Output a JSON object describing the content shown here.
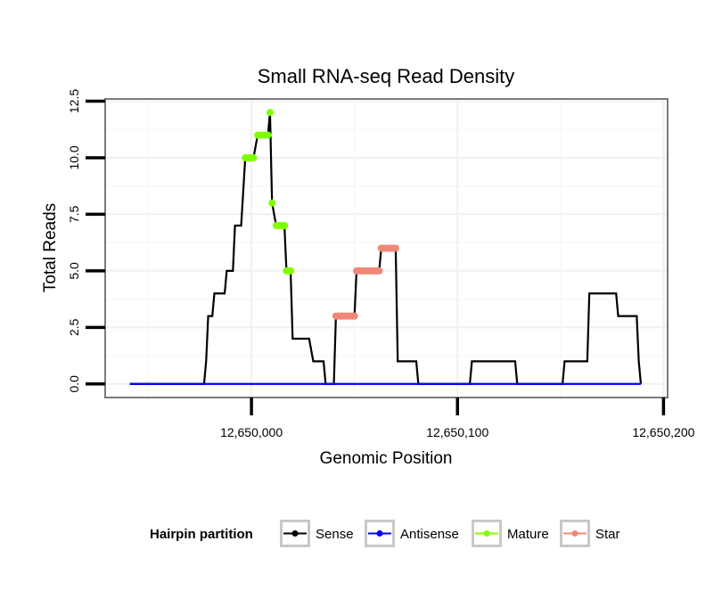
{
  "chart_data": {
    "type": "line",
    "title": "Small RNA-seq Read Density",
    "xlabel": "Genomic Position",
    "ylabel": "Total Reads",
    "xlim": [
      12649929,
      12650202
    ],
    "ylim": [
      -0.6,
      12.6
    ],
    "x_ticks": [
      12650000,
      12650100,
      12650200
    ],
    "x_tick_labels": [
      "12,650,000",
      "12,650,100",
      "12,650,200"
    ],
    "y_ticks": [
      0,
      2.5,
      5,
      7.5,
      10,
      12.5
    ],
    "y_tick_labels": [
      "0.0",
      "2.5",
      "5.0",
      "7.5",
      "10.0",
      "12.5"
    ],
    "grid": true,
    "legend": {
      "title": "Hairpin partition",
      "position": "bottom",
      "entries": [
        {
          "label": "Sense",
          "color": "#000000"
        },
        {
          "label": "Antisense",
          "color": "#0000ff"
        },
        {
          "label": "Mature",
          "color": "#7fff00"
        },
        {
          "label": "Star",
          "color": "#f08878"
        }
      ]
    },
    "series": [
      {
        "name": "Sense",
        "color": "#000000",
        "points": [
          [
            12649941,
            0
          ],
          [
            12649977,
            0
          ],
          [
            12649978,
            1
          ],
          [
            12649979,
            3
          ],
          [
            12649981,
            3
          ],
          [
            12649982,
            4
          ],
          [
            12649987,
            4
          ],
          [
            12649988,
            5
          ],
          [
            12649991,
            5
          ],
          [
            12649992,
            7
          ],
          [
            12649995,
            7
          ],
          [
            12649997,
            10
          ],
          [
            12650001,
            10
          ],
          [
            12650003,
            11
          ],
          [
            12650008,
            11
          ],
          [
            12650009,
            12
          ],
          [
            12650010,
            8
          ],
          [
            12650012,
            7
          ],
          [
            12650016,
            7
          ],
          [
            12650017,
            5
          ],
          [
            12650019,
            5
          ],
          [
            12650020,
            2
          ],
          [
            12650028,
            2
          ],
          [
            12650030,
            1
          ],
          [
            12650035,
            1
          ],
          [
            12650036,
            0
          ],
          [
            12650040,
            0
          ],
          [
            12650041,
            3
          ],
          [
            12650050,
            3
          ],
          [
            12650051,
            5
          ],
          [
            12650062,
            5
          ],
          [
            12650063,
            6
          ],
          [
            12650070,
            6
          ],
          [
            12650071,
            1
          ],
          [
            12650080,
            1
          ],
          [
            12650081,
            0
          ],
          [
            12650106,
            0
          ],
          [
            12650107,
            1
          ],
          [
            12650128,
            1
          ],
          [
            12650129,
            0
          ],
          [
            12650151,
            0
          ],
          [
            12650152,
            1
          ],
          [
            12650163,
            1
          ],
          [
            12650164,
            4
          ],
          [
            12650177,
            4
          ],
          [
            12650178,
            3
          ],
          [
            12650187,
            3
          ],
          [
            12650188,
            1
          ],
          [
            12650189,
            0
          ]
        ]
      },
      {
        "name": "Antisense",
        "color": "#0000ff",
        "points": [
          [
            12649941,
            0
          ],
          [
            12650189,
            0
          ]
        ]
      },
      {
        "name": "Mature",
        "color": "#7fff00",
        "points": [
          [
            12649997,
            10
          ],
          [
            12649998,
            10
          ],
          [
            12649999,
            10
          ],
          [
            12650000,
            10
          ],
          [
            12650001,
            10
          ],
          [
            12650003,
            11
          ],
          [
            12650004,
            11
          ],
          [
            12650005,
            11
          ],
          [
            12650006,
            11
          ],
          [
            12650007,
            11
          ],
          [
            12650008,
            11
          ],
          [
            12650009,
            12
          ],
          [
            12650010,
            8
          ],
          [
            12650012,
            7
          ],
          [
            12650013,
            7
          ],
          [
            12650014,
            7
          ],
          [
            12650015,
            7
          ],
          [
            12650016,
            7
          ],
          [
            12650017,
            5
          ],
          [
            12650018,
            5
          ],
          [
            12650019,
            5
          ]
        ]
      },
      {
        "name": "Star",
        "color": "#f08878",
        "points": [
          [
            12650041,
            3
          ],
          [
            12650042,
            3
          ],
          [
            12650043,
            3
          ],
          [
            12650044,
            3
          ],
          [
            12650045,
            3
          ],
          [
            12650046,
            3
          ],
          [
            12650047,
            3
          ],
          [
            12650048,
            3
          ],
          [
            12650049,
            3
          ],
          [
            12650050,
            3
          ],
          [
            12650051,
            5
          ],
          [
            12650052,
            5
          ],
          [
            12650053,
            5
          ],
          [
            12650054,
            5
          ],
          [
            12650055,
            5
          ],
          [
            12650056,
            5
          ],
          [
            12650057,
            5
          ],
          [
            12650058,
            5
          ],
          [
            12650059,
            5
          ],
          [
            12650060,
            5
          ],
          [
            12650061,
            5
          ],
          [
            12650062,
            5
          ],
          [
            12650063,
            6
          ],
          [
            12650064,
            6
          ],
          [
            12650065,
            6
          ],
          [
            12650066,
            6
          ],
          [
            12650067,
            6
          ],
          [
            12650068,
            6
          ],
          [
            12650069,
            6
          ],
          [
            12650070,
            6
          ]
        ]
      }
    ]
  }
}
